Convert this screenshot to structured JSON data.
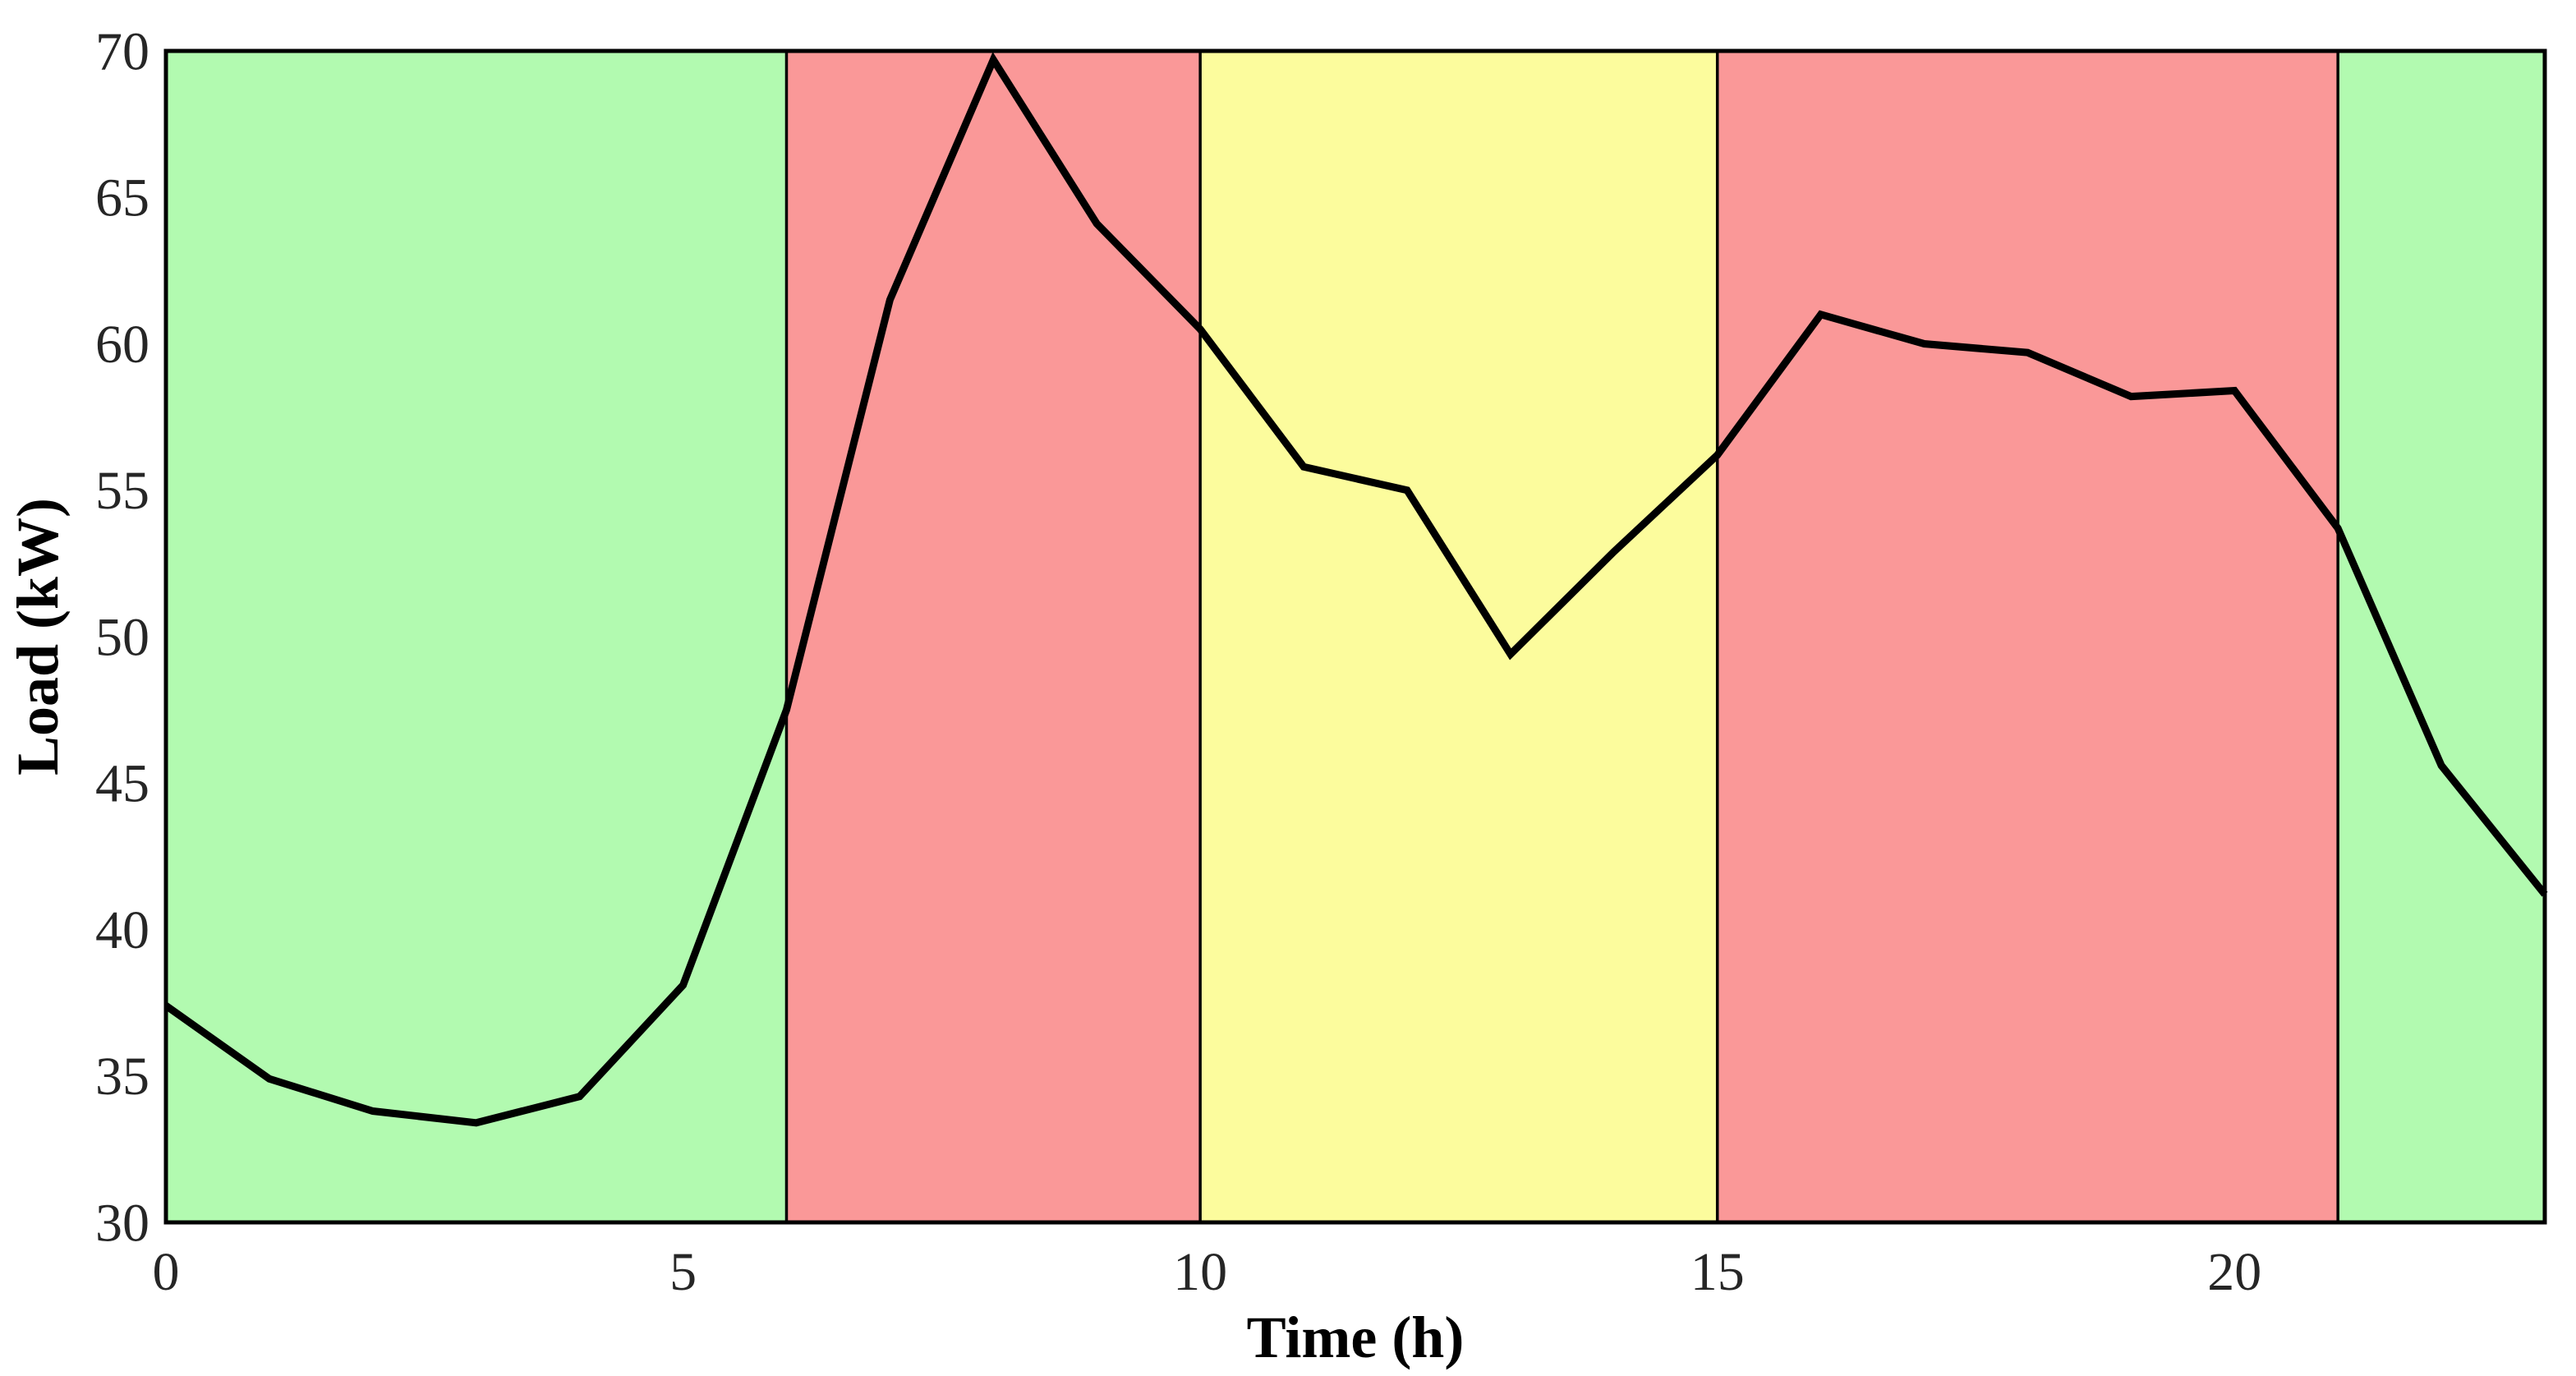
{
  "page": {
    "background": "#ffffff"
  },
  "chart_data": {
    "type": "line",
    "title": "",
    "xlabel": "Time (h)",
    "ylabel": "Load (kW)",
    "x": [
      0,
      1,
      2,
      3,
      4,
      5,
      6,
      7,
      8,
      9,
      10,
      11,
      12,
      13,
      14,
      15,
      16,
      17,
      18,
      19,
      20,
      21,
      22,
      23
    ],
    "series": [
      {
        "name": "Load",
        "color": "#000000",
        "values": [
          37.4,
          34.9,
          33.8,
          33.4,
          34.3,
          38.1,
          47.5,
          61.5,
          69.7,
          64.1,
          60.5,
          55.8,
          55.0,
          49.4,
          52.9,
          56.2,
          61.0,
          60.0,
          59.7,
          58.2,
          58.4,
          53.7,
          45.6,
          41.2
        ]
      }
    ],
    "xlim": [
      0,
      23
    ],
    "ylim": [
      30,
      70
    ],
    "xticks": [
      0,
      5,
      10,
      15,
      20
    ],
    "yticks": [
      30,
      35,
      40,
      45,
      50,
      55,
      60,
      65,
      70
    ],
    "grid": false,
    "legend": "none",
    "axis_color": "#000000",
    "tick_label_color": "#262626",
    "bands": [
      {
        "zone": "green",
        "from": 0,
        "to": 6,
        "color": "#b2fab0"
      },
      {
        "zone": "red",
        "from": 6,
        "to": 10,
        "color": "#fa9898"
      },
      {
        "zone": "yellow",
        "from": 10,
        "to": 15,
        "color": "#fcfc9d"
      },
      {
        "zone": "red",
        "from": 15,
        "to": 21,
        "color": "#fa9898"
      },
      {
        "zone": "green",
        "from": 21,
        "to": 23,
        "color": "#b2fab0"
      }
    ]
  }
}
